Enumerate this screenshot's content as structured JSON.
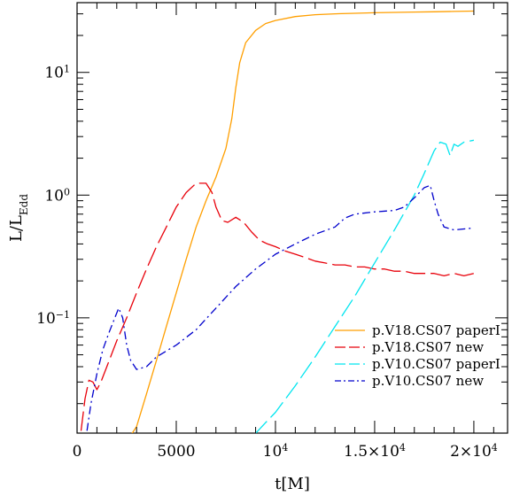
{
  "chart_data": {
    "type": "line",
    "xlabel": "t[M]",
    "ylabel": {
      "base": "L/L",
      "sub": "Edd"
    },
    "xlim": [
      0,
      21700
    ],
    "ylim": [
      0.0115,
      37
    ],
    "yscale": "log",
    "grid": false,
    "legend_position": "bottom-right",
    "x_ticks": [
      {
        "value": 0,
        "label": "0"
      },
      {
        "value": 5000,
        "label": "5000"
      },
      {
        "value": 10000,
        "label": "10",
        "exp": "4"
      },
      {
        "value": 15000,
        "label": "1.5×10",
        "exp": "4"
      },
      {
        "value": 20000,
        "label": "2×10",
        "exp": "4"
      }
    ],
    "y_ticks": [
      {
        "value": 0.1,
        "label": "10",
        "exp": "−1"
      },
      {
        "value": 1,
        "label": "10",
        "exp": "0"
      },
      {
        "value": 10,
        "label": "10",
        "exp": "1"
      }
    ],
    "series": [
      {
        "name": "p.V18.CS07 paperI",
        "color": "#ff9f00",
        "dash": "solid",
        "x": [
          2700,
          3000,
          3500,
          4000,
          4500,
          5000,
          5500,
          6000,
          6500,
          7000,
          7500,
          7800,
          8000,
          8200,
          8500,
          9000,
          9500,
          10000,
          11000,
          12000,
          13000,
          14000,
          15000,
          16000,
          17000,
          18000,
          19000,
          20000
        ],
        "y": [
          0.011,
          0.013,
          0.024,
          0.045,
          0.085,
          0.16,
          0.3,
          0.55,
          0.9,
          1.4,
          2.4,
          4.2,
          7.5,
          12,
          17.5,
          22,
          25,
          26.5,
          28.5,
          29.5,
          30,
          30.3,
          30.6,
          30.8,
          31,
          31.2,
          31.4,
          31.6
        ]
      },
      {
        "name": "p.V18.CS07 new",
        "color": "#e8000a",
        "dash": "long-dash",
        "x": [
          200,
          400,
          600,
          800,
          1000,
          1200,
          1500,
          2000,
          2500,
          3000,
          3500,
          4000,
          4500,
          5000,
          5500,
          6000,
          6500,
          6800,
          7000,
          7300,
          7600,
          8000,
          8400,
          8800,
          9200,
          9600,
          10000,
          10500,
          11000,
          11500,
          12000,
          12500,
          13000,
          13500,
          14000,
          14500,
          15000,
          15500,
          16000,
          16500,
          17000,
          17500,
          18000,
          18500,
          19000,
          19500,
          20000
        ],
        "y": [
          0.012,
          0.022,
          0.031,
          0.03,
          0.026,
          0.03,
          0.04,
          0.065,
          0.1,
          0.16,
          0.25,
          0.38,
          0.55,
          0.8,
          1.05,
          1.25,
          1.25,
          1.05,
          0.8,
          0.62,
          0.6,
          0.66,
          0.6,
          0.5,
          0.43,
          0.4,
          0.38,
          0.35,
          0.33,
          0.31,
          0.29,
          0.28,
          0.27,
          0.27,
          0.26,
          0.26,
          0.25,
          0.25,
          0.24,
          0.24,
          0.23,
          0.23,
          0.23,
          0.22,
          0.23,
          0.22,
          0.23
        ]
      },
      {
        "name": "p.V10.CS07 paperI",
        "color": "#00e5ef",
        "dash": "long-dash",
        "x": [
          8900,
          9500,
          10000,
          11000,
          12000,
          13000,
          14000,
          15000,
          16000,
          17000,
          17500,
          18000,
          18300,
          18600,
          18800,
          19000,
          19200,
          19500,
          20000
        ],
        "y": [
          0.011,
          0.014,
          0.017,
          0.028,
          0.048,
          0.085,
          0.15,
          0.28,
          0.52,
          1.0,
          1.5,
          2.3,
          2.7,
          2.6,
          2.1,
          2.6,
          2.5,
          2.7,
          2.8
        ]
      },
      {
        "name": "p.V10.CS07 new",
        "color": "#0000cc",
        "dash": "dash-dot",
        "x": [
          500,
          700,
          1000,
          1300,
          1600,
          1900,
          2100,
          2300,
          2500,
          2700,
          3000,
          3500,
          4000,
          5000,
          6000,
          7000,
          8000,
          9000,
          10000,
          11000,
          12000,
          13000,
          13500,
          14000,
          15000,
          16000,
          16500,
          17000,
          17500,
          17800,
          18000,
          18200,
          18500,
          19000,
          19500,
          20000
        ],
        "y": [
          0.012,
          0.02,
          0.035,
          0.055,
          0.075,
          0.1,
          0.12,
          0.1,
          0.06,
          0.045,
          0.038,
          0.04,
          0.048,
          0.06,
          0.08,
          0.12,
          0.18,
          0.25,
          0.33,
          0.4,
          0.48,
          0.55,
          0.65,
          0.7,
          0.73,
          0.75,
          0.8,
          0.95,
          1.15,
          1.2,
          0.9,
          0.7,
          0.55,
          0.52,
          0.53,
          0.54
        ]
      }
    ]
  }
}
